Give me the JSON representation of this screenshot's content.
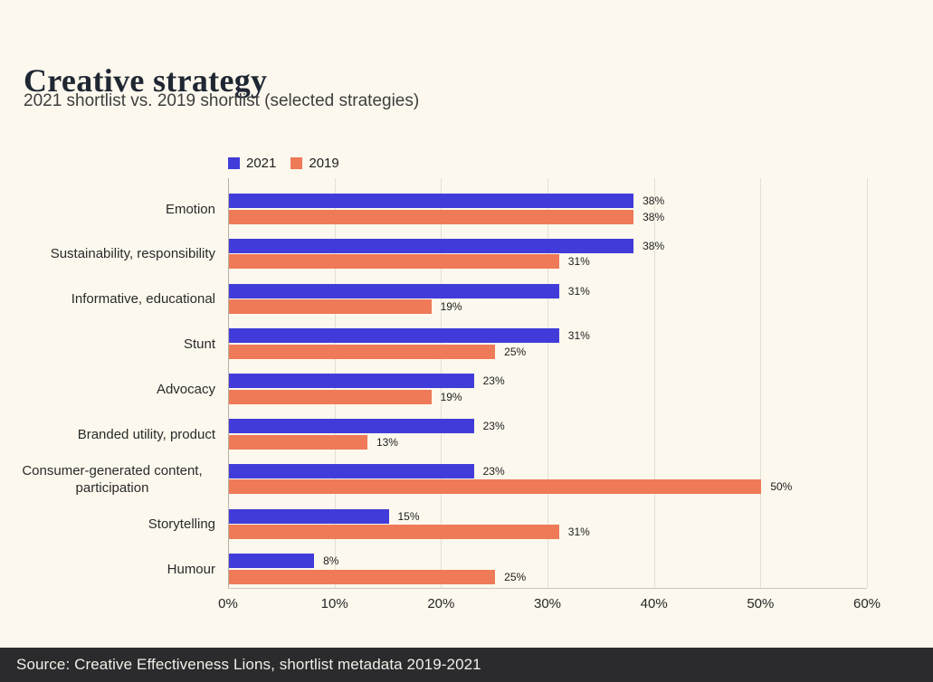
{
  "header": {
    "title": "Creative strategy",
    "subtitle": "2021 shortlist vs. 2019 shortlist (selected strategies)"
  },
  "legend": [
    {
      "label": "2021",
      "color": "#413CD9"
    },
    {
      "label": "2019",
      "color": "#EE7A57"
    }
  ],
  "chart_data": {
    "type": "bar",
    "orientation": "horizontal",
    "title": "Creative strategy",
    "subtitle": "2021 shortlist vs. 2019 shortlist (selected strategies)",
    "categories": [
      "Emotion",
      "Sustainability, responsibility",
      "Informative, educational",
      "Stunt",
      "Advocacy",
      "Branded utility, product",
      "Consumer-generated content, participation",
      "Storytelling",
      "Humour"
    ],
    "series": [
      {
        "name": "2021",
        "color": "#413CD9",
        "values": [
          38,
          38,
          31,
          31,
          23,
          23,
          23,
          15,
          8
        ]
      },
      {
        "name": "2019",
        "color": "#EE7A57",
        "values": [
          38,
          31,
          19,
          25,
          19,
          13,
          50,
          31,
          25
        ]
      }
    ],
    "value_suffix": "%",
    "xlim": [
      0,
      60
    ],
    "x_tick_values": [
      0,
      10,
      20,
      30,
      40,
      50,
      60
    ],
    "x_ticks": [
      "0%",
      "10%",
      "20%",
      "30%",
      "40%",
      "50%",
      "60%"
    ],
    "grid": "vertical",
    "legend_position": "top"
  },
  "footer": {
    "source": "Source: Creative Effectiveness Lions, shortlist metadata 2019-2021"
  },
  "colors": {
    "background": "#FCF8ED",
    "bar_2021": "#413CD9",
    "bar_2019": "#EE7A57",
    "gridline": "#E3DFD4",
    "zero_line": "#B6B2A8",
    "footer_background": "#2B2B2D",
    "footer_text": "#F2EFE9"
  }
}
